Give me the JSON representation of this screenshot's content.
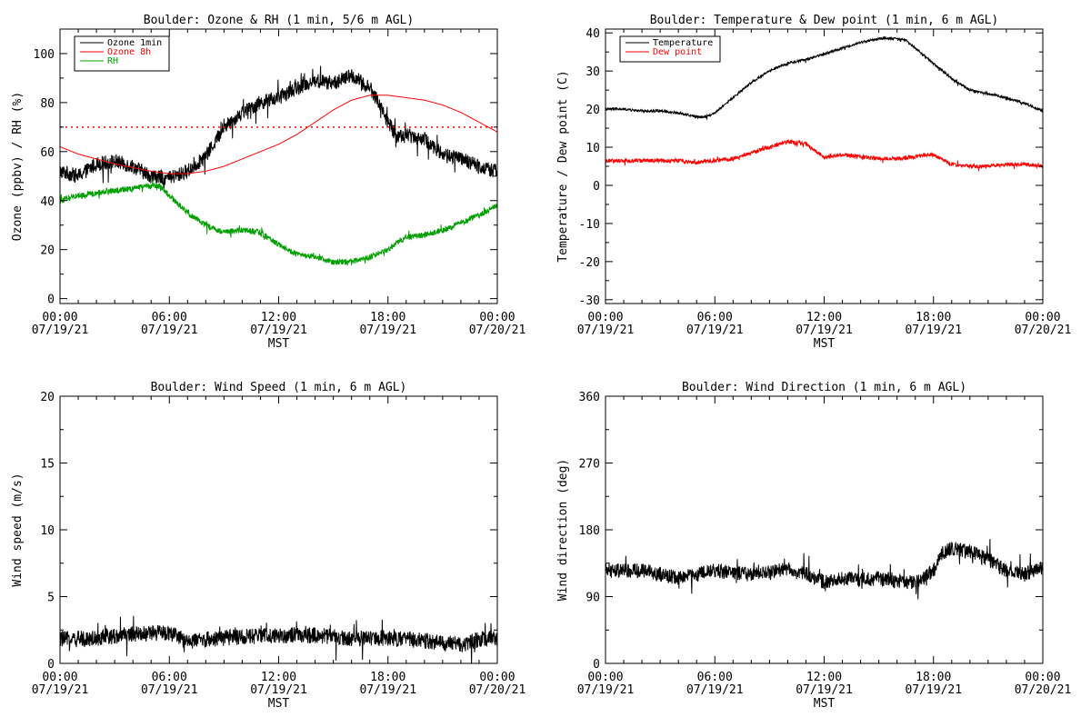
{
  "colors": {
    "background": "#ffffff",
    "axis": "#000000",
    "black": "#000000",
    "red": "#ff0000",
    "green": "#00a000"
  },
  "chart_data": [
    {
      "id": "ozone",
      "type": "line",
      "title": "Boulder: Ozone & RH (1 min, 5/6 m AGL)",
      "xlabel": "MST",
      "ylabel": "Ozone (ppbv) / RH (%)",
      "xlim_hours": [
        0,
        24
      ],
      "x_ticks": [
        {
          "h": 0,
          "time": "00:00",
          "date": "07/19/21"
        },
        {
          "h": 6,
          "time": "06:00",
          "date": "07/19/21"
        },
        {
          "h": 12,
          "time": "12:00",
          "date": "07/19/21"
        },
        {
          "h": 18,
          "time": "18:00",
          "date": "07/19/21"
        },
        {
          "h": 24,
          "time": "00:00",
          "date": "07/20/21"
        }
      ],
      "ylim": [
        -2,
        110
      ],
      "y_ticks": [
        0,
        20,
        40,
        60,
        80,
        100
      ],
      "grid": false,
      "legend": {
        "position": "top-left",
        "entries": [
          {
            "label": "Ozone 1min",
            "color": "#000000"
          },
          {
            "label": "Ozone 8h",
            "color": "#ff0000"
          },
          {
            "label": "RH",
            "color": "#00a000"
          }
        ]
      },
      "reference_lines": [
        {
          "y": 70,
          "color": "#ff0000",
          "style": "dotted"
        }
      ],
      "series": [
        {
          "name": "Ozone 1min",
          "color": "#000000",
          "noise": 3,
          "points": [
            [
              0,
              52
            ],
            [
              1,
              50
            ],
            [
              2,
              55
            ],
            [
              3,
              56
            ],
            [
              4,
              54
            ],
            [
              5,
              50
            ],
            [
              6,
              49
            ],
            [
              7,
              52
            ],
            [
              8,
              58
            ],
            [
              9,
              70
            ],
            [
              10,
              76
            ],
            [
              11,
              80
            ],
            [
              12,
              82
            ],
            [
              13,
              86
            ],
            [
              14,
              89
            ],
            [
              15,
              88
            ],
            [
              16,
              91
            ],
            [
              17,
              86
            ],
            [
              17.5,
              80
            ],
            [
              18,
              72
            ],
            [
              18.5,
              66
            ],
            [
              19,
              67
            ],
            [
              20,
              65
            ],
            [
              21,
              59
            ],
            [
              22,
              57
            ],
            [
              23,
              54
            ],
            [
              24,
              52
            ]
          ]
        },
        {
          "name": "Ozone 8h",
          "color": "#ff0000",
          "noise": 0,
          "points": [
            [
              0,
              62
            ],
            [
              1,
              59
            ],
            [
              2,
              57
            ],
            [
              3,
              55
            ],
            [
              4,
              53.5
            ],
            [
              5,
              52
            ],
            [
              6,
              51
            ],
            [
              7,
              51
            ],
            [
              8,
              52
            ],
            [
              9,
              54
            ],
            [
              10,
              57
            ],
            [
              11,
              60
            ],
            [
              12,
              63
            ],
            [
              13,
              67
            ],
            [
              14,
              72
            ],
            [
              15,
              77
            ],
            [
              16,
              81
            ],
            [
              17,
              83
            ],
            [
              18,
              83
            ],
            [
              19,
              82
            ],
            [
              20,
              81
            ],
            [
              21,
              79
            ],
            [
              22,
              76
            ],
            [
              23,
              72
            ],
            [
              24,
              68
            ]
          ]
        },
        {
          "name": "RH",
          "color": "#00a000",
          "noise": 1.2,
          "points": [
            [
              0,
              40
            ],
            [
              1,
              42
            ],
            [
              2,
              43
            ],
            [
              3,
              44
            ],
            [
              4,
              45
            ],
            [
              5,
              46
            ],
            [
              5.5,
              46
            ],
            [
              6,
              42
            ],
            [
              7,
              35
            ],
            [
              8,
              30
            ],
            [
              9,
              27
            ],
            [
              10,
              28
            ],
            [
              11,
              27
            ],
            [
              12,
              22
            ],
            [
              13,
              18
            ],
            [
              14,
              17
            ],
            [
              15,
              15
            ],
            [
              16,
              15
            ],
            [
              17,
              17
            ],
            [
              18,
              20
            ],
            [
              18.5,
              23
            ],
            [
              19,
              25
            ],
            [
              20,
              26
            ],
            [
              21,
              28
            ],
            [
              22,
              31
            ],
            [
              23,
              34
            ],
            [
              24,
              38
            ]
          ]
        }
      ]
    },
    {
      "id": "temp",
      "type": "line",
      "title": "Boulder: Temperature & Dew point (1 min, 6 m AGL)",
      "xlabel": "MST",
      "ylabel": "Temperature / Dew point (C)",
      "xlim_hours": [
        0,
        24
      ],
      "x_ticks": [
        {
          "h": 0,
          "time": "00:00",
          "date": "07/19/21"
        },
        {
          "h": 6,
          "time": "06:00",
          "date": "07/19/21"
        },
        {
          "h": 12,
          "time": "12:00",
          "date": "07/19/21"
        },
        {
          "h": 18,
          "time": "18:00",
          "date": "07/19/21"
        },
        {
          "h": 24,
          "time": "00:00",
          "date": "07/20/21"
        }
      ],
      "ylim": [
        -31,
        41
      ],
      "y_ticks": [
        -30,
        -20,
        -10,
        0,
        10,
        20,
        30,
        40
      ],
      "grid": false,
      "legend": {
        "position": "top-left",
        "entries": [
          {
            "label": "Temperature",
            "color": "#000000"
          },
          {
            "label": "Dew point",
            "color": "#ff0000"
          }
        ]
      },
      "reference_lines": [],
      "series": [
        {
          "name": "Temperature",
          "color": "#000000",
          "noise": 0.3,
          "points": [
            [
              0,
              20
            ],
            [
              1,
              20
            ],
            [
              2,
              19.5
            ],
            [
              3,
              19.5
            ],
            [
              4,
              19
            ],
            [
              5,
              18
            ],
            [
              5.5,
              18
            ],
            [
              6,
              19
            ],
            [
              7,
              23
            ],
            [
              8,
              27
            ],
            [
              9,
              30
            ],
            [
              10,
              32
            ],
            [
              11,
              33
            ],
            [
              12,
              34.5
            ],
            [
              13,
              36
            ],
            [
              14,
              37.5
            ],
            [
              15,
              38.5
            ],
            [
              16,
              38.5
            ],
            [
              16.5,
              38
            ],
            [
              17,
              36
            ],
            [
              18,
              32
            ],
            [
              19,
              28
            ],
            [
              20,
              25
            ],
            [
              21,
              24
            ],
            [
              22,
              23
            ],
            [
              23,
              21.5
            ],
            [
              24,
              19.5
            ]
          ]
        },
        {
          "name": "Dew point",
          "color": "#ff0000",
          "noise": 0.5,
          "points": [
            [
              0,
              6.5
            ],
            [
              1,
              6.5
            ],
            [
              2,
              6.5
            ],
            [
              3,
              6.5
            ],
            [
              4,
              6.5
            ],
            [
              5,
              6
            ],
            [
              6,
              6.5
            ],
            [
              7,
              7
            ],
            [
              8,
              8.5
            ],
            [
              9,
              10
            ],
            [
              10,
              11.5
            ],
            [
              11,
              11
            ],
            [
              11.5,
              9
            ],
            [
              12,
              7.5
            ],
            [
              13,
              8
            ],
            [
              14,
              7.5
            ],
            [
              15,
              7
            ],
            [
              16,
              7
            ],
            [
              17,
              7.5
            ],
            [
              18,
              8
            ],
            [
              19,
              5.5
            ],
            [
              20,
              5
            ],
            [
              21,
              5
            ],
            [
              22,
              5.5
            ],
            [
              23,
              5.5
            ],
            [
              24,
              5
            ]
          ]
        }
      ]
    },
    {
      "id": "wspd",
      "type": "line",
      "title": "Boulder: Wind Speed (1 min, 6 m AGL)",
      "xlabel": "MST",
      "ylabel": "Wind speed (m/s)",
      "xlim_hours": [
        0,
        24
      ],
      "x_ticks": [
        {
          "h": 0,
          "time": "00:00",
          "date": "07/19/21"
        },
        {
          "h": 6,
          "time": "06:00",
          "date": "07/19/21"
        },
        {
          "h": 12,
          "time": "12:00",
          "date": "07/19/21"
        },
        {
          "h": 18,
          "time": "18:00",
          "date": "07/19/21"
        },
        {
          "h": 24,
          "time": "00:00",
          "date": "07/20/21"
        }
      ],
      "ylim": [
        0,
        20
      ],
      "y_ticks": [
        0,
        5,
        10,
        15,
        20
      ],
      "grid": false,
      "legend": null,
      "reference_lines": [],
      "series": [
        {
          "name": "",
          "color": "#000000",
          "noise": 0.6,
          "points": [
            [
              0,
              1.8
            ],
            [
              2,
              1.9
            ],
            [
              4,
              2.2
            ],
            [
              6,
              2.3
            ],
            [
              7,
              1.6
            ],
            [
              8,
              1.8
            ],
            [
              10,
              2.0
            ],
            [
              12,
              2.1
            ],
            [
              14,
              2.1
            ],
            [
              16,
              1.9
            ],
            [
              18,
              1.9
            ],
            [
              20,
              1.7
            ],
            [
              22,
              1.4
            ],
            [
              23,
              1.8
            ],
            [
              24,
              1.9
            ]
          ]
        }
      ]
    },
    {
      "id": "wdir",
      "type": "line",
      "title": "Boulder: Wind Direction (1 min, 6 m AGL)",
      "xlabel": "MST",
      "ylabel": "Wind direction (deg)",
      "xlim_hours": [
        0,
        24
      ],
      "x_ticks": [
        {
          "h": 0,
          "time": "00:00",
          "date": "07/19/21"
        },
        {
          "h": 6,
          "time": "06:00",
          "date": "07/19/21"
        },
        {
          "h": 12,
          "time": "12:00",
          "date": "07/19/21"
        },
        {
          "h": 18,
          "time": "18:00",
          "date": "07/19/21"
        },
        {
          "h": 24,
          "time": "00:00",
          "date": "07/20/21"
        }
      ],
      "ylim": [
        0,
        360
      ],
      "y_ticks": [
        0,
        90,
        180,
        270,
        360
      ],
      "grid": false,
      "legend": null,
      "reference_lines": [],
      "series": [
        {
          "name": "",
          "color": "#000000",
          "noise": 10,
          "points": [
            [
              0,
              125
            ],
            [
              2,
              125
            ],
            [
              4,
              115
            ],
            [
              6,
              125
            ],
            [
              8,
              120
            ],
            [
              9,
              122
            ],
            [
              10,
              128
            ],
            [
              11,
              120
            ],
            [
              12,
              110
            ],
            [
              13,
              115
            ],
            [
              14,
              112
            ],
            [
              15,
              115
            ],
            [
              16,
              112
            ],
            [
              17,
              108
            ],
            [
              18,
              125
            ],
            [
              18.5,
              150
            ],
            [
              19,
              155
            ],
            [
              20,
              150
            ],
            [
              21,
              140
            ],
            [
              22,
              125
            ],
            [
              23,
              120
            ],
            [
              24,
              130
            ]
          ]
        }
      ]
    }
  ]
}
